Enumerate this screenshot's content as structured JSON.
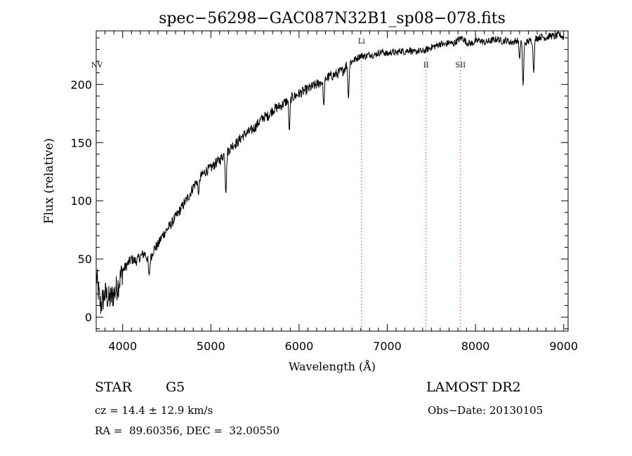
{
  "chart_data": {
    "type": "line",
    "title": "spec−56298−GAC087N32B1_sp08−078.fits",
    "xlabel": "Wavelength (Å)",
    "ylabel": "Flux (relative)",
    "xlim": [
      3700,
      9050
    ],
    "ylim": [
      -12,
      246
    ],
    "x_ticks": [
      4000,
      5000,
      6000,
      7000,
      8000,
      9000
    ],
    "x_tick_labels": [
      "4000",
      "5000",
      "6000",
      "7000",
      "8000",
      "9000"
    ],
    "y_ticks": [
      0,
      50,
      100,
      150,
      200
    ],
    "y_tick_labels": [
      "0",
      "50",
      "100",
      "150",
      "200"
    ],
    "grid": false,
    "series": [
      {
        "x": [
          3700,
          3750,
          3800,
          3850,
          3900,
          3950,
          4000,
          4050,
          4100,
          4150,
          4200,
          4250,
          4300,
          4350,
          4400,
          4450,
          4500,
          4550,
          4600,
          4650,
          4700,
          4750,
          4800,
          4850,
          4900,
          4950,
          5000,
          5050,
          5100,
          5150,
          5200,
          5250,
          5300,
          5350,
          5400,
          5450,
          5500,
          5550,
          5600,
          5650,
          5700,
          5750,
          5800,
          5850,
          5900,
          5950,
          6000,
          6050,
          6100,
          6150,
          6200,
          6250,
          6300,
          6350,
          6400,
          6450,
          6500,
          6550,
          6600,
          6650,
          6700,
          6750,
          6800,
          6850,
          6900,
          6950,
          7000,
          7050,
          7100,
          7150,
          7200,
          7250,
          7300,
          7350,
          7400,
          7450,
          7500,
          7550,
          7600,
          7650,
          7700,
          7750,
          7800,
          7850,
          7900,
          7950,
          8000,
          8050,
          8100,
          8150,
          8200,
          8250,
          8300,
          8350,
          8400,
          8450,
          8500,
          8550,
          8600,
          8650,
          8700,
          8750,
          8800,
          8850,
          8900,
          8950,
          9000
        ],
        "y": [
          35,
          10,
          20,
          15,
          20,
          28,
          40,
          45,
          50,
          48,
          52,
          55,
          47,
          58,
          62,
          70,
          75,
          80,
          86,
          92,
          98,
          104,
          112,
          118,
          122,
          126,
          128,
          132,
          135,
          140,
          143,
          148,
          150,
          155,
          158,
          160,
          163,
          168,
          172,
          173,
          178,
          180,
          182,
          185,
          188,
          190,
          192,
          194,
          196,
          198,
          200,
          202,
          205,
          207,
          208,
          210,
          212,
          218,
          220,
          222,
          225,
          224,
          226,
          225,
          227,
          228,
          226,
          228,
          227,
          229,
          228,
          230,
          227,
          229,
          228,
          230,
          232,
          233,
          235,
          234,
          236,
          235,
          238,
          240,
          236,
          235,
          237,
          238,
          236,
          237,
          238,
          239,
          237,
          238,
          236,
          237,
          239,
          235,
          237,
          238,
          240,
          241,
          240,
          242,
          241,
          243,
          240
        ]
      }
    ],
    "absorption_dips": [
      {
        "x": 4300,
        "y": 36
      },
      {
        "x": 4860,
        "y": 105
      },
      {
        "x": 5170,
        "y": 106
      },
      {
        "x": 5890,
        "y": 160
      },
      {
        "x": 6280,
        "y": 182
      },
      {
        "x": 6560,
        "y": 188
      },
      {
        "x": 8500,
        "y": 222
      },
      {
        "x": 8540,
        "y": 199
      },
      {
        "x": 8660,
        "y": 210
      }
    ],
    "line_markers": [
      {
        "label": "NV",
        "x": 3740
      },
      {
        "label": "Li",
        "x": 6708
      },
      {
        "label": "II",
        "x": 7440
      },
      {
        "label": "SII",
        "x": 7830
      }
    ],
    "colors": {
      "axes": "#000000",
      "spectrum": "#000000",
      "marker_line": "#e06060"
    }
  },
  "info": {
    "object_class": "STAR",
    "subclass": "G5",
    "survey": "LAMOST DR2",
    "cz": "cz = 14.4 ± 12.9 km/s",
    "obs_date": "Obs−Date: 20130105",
    "coords": "RA =  89.60356, DEC =  32.00550"
  }
}
